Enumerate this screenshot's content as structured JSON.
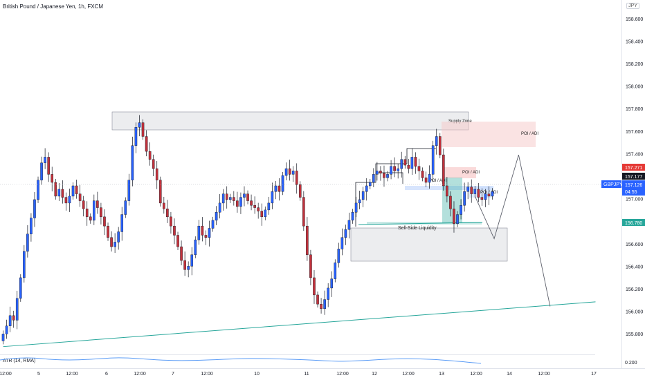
{
  "header": {
    "symbol": "British Pound / Japanese Yen, 1h, FXCM",
    "currency": "JPY"
  },
  "indicator": {
    "label": "ATR (14, RMA)",
    "value_label": "0.200"
  },
  "chart_data": {
    "type": "candlestick",
    "y_ticks": [
      "158.600",
      "158.400",
      "158.200",
      "158.000",
      "157.800",
      "157.600",
      "157.400",
      "157.200",
      "157.000",
      "156.800",
      "156.600",
      "156.400",
      "156.200",
      "156.000",
      "155.800"
    ],
    "x_ticks": [
      "12:00",
      "5",
      "12:00",
      "6",
      "12:00",
      "7",
      "12:00",
      "10",
      "11",
      "12:00",
      "12",
      "12:00",
      "13",
      "12:00",
      "14",
      "12:00",
      "17"
    ],
    "ylim": [
      155.7,
      158.72
    ],
    "price_labels": {
      "red": "157.271",
      "dark": "157.177",
      "symbol": "GBPJPY",
      "last": "157.126",
      "countdown": "04:55",
      "green": "156.780"
    },
    "colors": {
      "up": "#2962ff",
      "down": "#c2313b",
      "wick": "#131722",
      "trend": "#26a69a"
    },
    "annotations": {
      "supply": "Supply Zone",
      "poi1": "POI / ADI",
      "poi2": "POI / ADI",
      "poi3": "POI / ADI",
      "poi4": "POI / ADI",
      "ssl": "Sell-Side Liquidity"
    },
    "path_points": [
      {
        "t": 135.5,
        "p": 157.06
      },
      {
        "t": 141,
        "p": 156.69
      },
      {
        "t": 148,
        "p": 157.42
      },
      {
        "t": 157,
        "p": 156.1
      }
    ],
    "trendline": [
      {
        "t": 0.5,
        "p": 155.75
      },
      {
        "t": 170,
        "p": 156.14
      }
    ],
    "closes": [
      155.86,
      155.93,
      156.02,
      155.98,
      156.17,
      156.35,
      156.58,
      156.73,
      156.87,
      157.03,
      157.2,
      157.35,
      157.4,
      157.25,
      157.18,
      157.06,
      157.12,
      157.05,
      157.0,
      157.06,
      157.15,
      157.08,
      157.02,
      156.95,
      156.88,
      156.85,
      157.02,
      156.96,
      156.88,
      156.8,
      156.7,
      156.62,
      156.66,
      156.75,
      156.9,
      157.02,
      157.2,
      157.5,
      157.66,
      157.7,
      157.58,
      157.45,
      157.38,
      157.3,
      157.2,
      157.0,
      156.95,
      156.88,
      156.8,
      156.72,
      156.62,
      156.5,
      156.42,
      156.45,
      156.55,
      156.68,
      156.8,
      156.72,
      156.7,
      156.78,
      156.85,
      156.92,
      157.0,
      157.08,
      157.03,
      157.05,
      157.02,
      156.97,
      157.05,
      157.08,
      157.02,
      156.98,
      156.96,
      156.93,
      156.88,
      156.94,
      157.0,
      157.1,
      157.15,
      157.1,
      157.24,
      157.3,
      157.25,
      157.28,
      157.16,
      157.05,
      156.8,
      156.55,
      156.35,
      156.2,
      156.12,
      156.08,
      156.16,
      156.26,
      156.34,
      156.48,
      156.6,
      156.7,
      156.77,
      156.85,
      156.92,
      157.0,
      157.03,
      157.1,
      157.15,
      157.18,
      157.25,
      157.28,
      157.26,
      157.22,
      157.25,
      157.32,
      157.28,
      157.3,
      157.38,
      157.33,
      157.3,
      157.4,
      157.32,
      157.28,
      157.22,
      157.18,
      157.25,
      157.5,
      157.58,
      157.42,
      157.15,
      157.06,
      156.95,
      156.82,
      156.9,
      156.98,
      157.1,
      157.14,
      157.08,
      157.12,
      157.05,
      157.03,
      157.08,
      157.06,
      157.1
    ]
  }
}
